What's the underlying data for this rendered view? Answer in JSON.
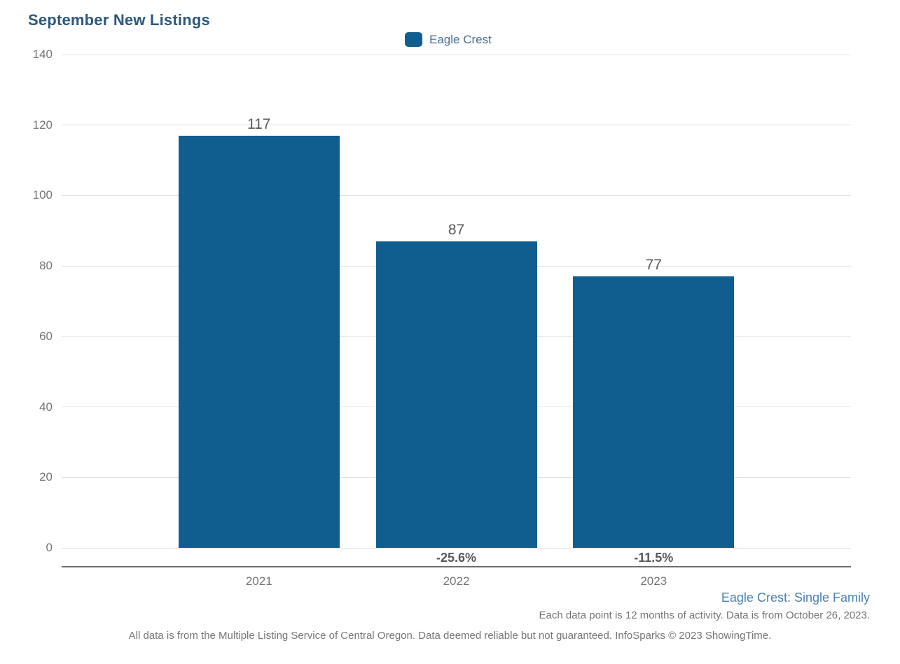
{
  "page": {
    "title": "September New Listings"
  },
  "legend": {
    "label": "Eagle Crest",
    "swatch_color": "#105e90"
  },
  "chart_data": {
    "type": "bar",
    "title": "September New Listings",
    "categories": [
      "2021",
      "2022",
      "2023"
    ],
    "series": [
      {
        "name": "Eagle Crest",
        "values": [
          117,
          87,
          77
        ],
        "color": "#105e90"
      }
    ],
    "value_labels": [
      "117",
      "87",
      "77"
    ],
    "pct_change_labels": [
      "",
      "-25.6%",
      "-11.5%"
    ],
    "y_ticks": [
      0,
      20,
      40,
      60,
      80,
      100,
      120,
      140
    ],
    "ylim": [
      0,
      140
    ],
    "xlabel": "",
    "ylabel": "",
    "grid": true,
    "legend_position": "top-center"
  },
  "footnotes": {
    "segment": "Eagle Crest: Single Family",
    "data_note": "Each data point is 12 months of activity. Data is from October 26, 2023.",
    "disclaimer": "All data is from the Multiple Listing Service of Central Oregon. Data deemed reliable but not guaranteed. InfoSparks © 2023 ShowingTime."
  },
  "colors": {
    "bar": "#105e90",
    "title": "#2d587d",
    "legend_text": "#4a6d90",
    "segment_text": "#4d7fae",
    "axis_text": "#757575",
    "value_text": "#58585a",
    "gridline": "#e2e2e2",
    "axis_line": "#6e6e6e"
  }
}
